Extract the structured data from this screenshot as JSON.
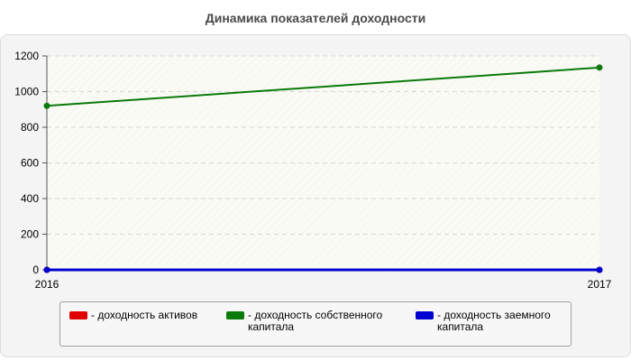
{
  "chart_data": {
    "type": "line",
    "title": "Динамика показателей доходности",
    "x": [
      "2016",
      "2017"
    ],
    "ylim": [
      0,
      1200
    ],
    "yticks": [
      0,
      200,
      400,
      600,
      800,
      1000,
      1200
    ],
    "grid": true,
    "legend_position": "bottom",
    "series": [
      {
        "name": "- доходность активов",
        "color": "#e00000",
        "values": [
          0,
          0
        ]
      },
      {
        "name": "- доходность собственного капитала",
        "color": "#0a7a0a",
        "values": [
          920,
          1135
        ]
      },
      {
        "name": "- доходность заемного капитала",
        "color": "#0000d0",
        "values": [
          0,
          0
        ]
      }
    ]
  }
}
